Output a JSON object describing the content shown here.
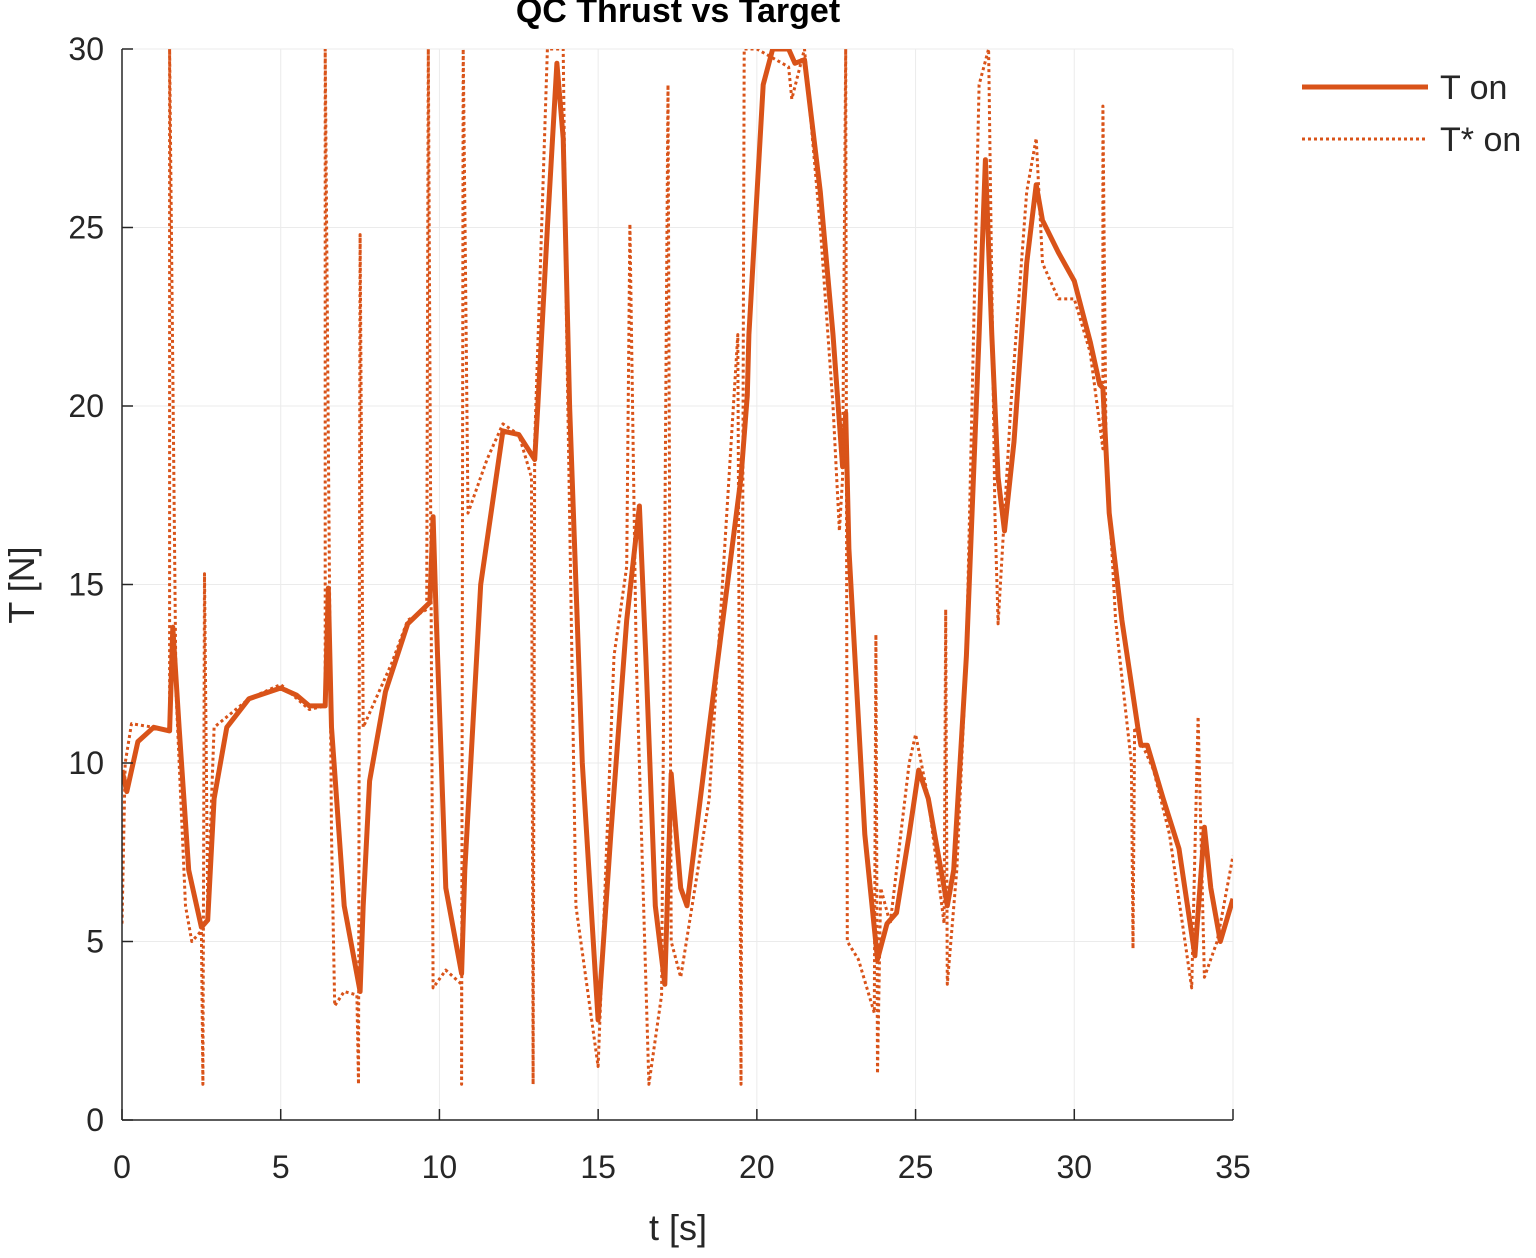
{
  "chart_data": {
    "type": "line",
    "title": "QC Thrust vs Target",
    "x_label": "t [s]",
    "y_label": "T [N]",
    "xlim": [
      0,
      35
    ],
    "ylim": [
      0,
      30
    ],
    "xticks": [
      0,
      5,
      10,
      15,
      20,
      25,
      30,
      35
    ],
    "yticks": [
      0,
      5,
      10,
      15,
      20,
      25,
      30
    ],
    "grid": true,
    "series": [
      {
        "name": "T on",
        "color": "#D95319",
        "style": "solid",
        "x": [
          0,
          0.15,
          0.5,
          1,
          1.5,
          1.6,
          1.8,
          2.1,
          2.5,
          2.7,
          2.9,
          3.3,
          4,
          5,
          5.5,
          5.9,
          6.4,
          6.5,
          6.6,
          7,
          7.5,
          7.6,
          7.8,
          8.3,
          9,
          9.7,
          9.8,
          9.9,
          10.2,
          10.7,
          10.8,
          11.3,
          12,
          12.5,
          13,
          13.1,
          13.4,
          13.7,
          13.9,
          14.1,
          14.5,
          15,
          15.4,
          15.9,
          16.3,
          16.5,
          16.8,
          17.1,
          17.3,
          17.6,
          17.8,
          18.5,
          19.5,
          19.7,
          19.75,
          20.2,
          20.5,
          21,
          21.2,
          21.5,
          22,
          22.4,
          22.7,
          22.8,
          22.9,
          23.4,
          23.8,
          24.1,
          24.4,
          24.8,
          25.1,
          25.4,
          25.8,
          26,
          26.2,
          26.6,
          27,
          27.2,
          27.4,
          27.6,
          27.8,
          28.1,
          28.5,
          28.8,
          29,
          29.5,
          30,
          30.5,
          30.8,
          30.9,
          31.1,
          31.5,
          32,
          32.1,
          32.3,
          32.8,
          33.3,
          33.8,
          34.1,
          34.3,
          34.6,
          35
        ],
        "values": [
          9.8,
          9.2,
          10.6,
          11,
          10.9,
          13.8,
          11,
          7,
          5.4,
          5.6,
          9,
          11,
          11.8,
          12.1,
          11.9,
          11.6,
          11.6,
          14.9,
          11,
          6,
          3.6,
          6,
          9.5,
          12,
          13.9,
          14.5,
          16.9,
          14,
          6.5,
          4.1,
          7,
          15,
          19.3,
          19.2,
          18.5,
          20,
          25,
          29.6,
          27.5,
          20,
          10,
          2.8,
          8,
          14,
          17.2,
          13,
          6,
          3.8,
          9.7,
          6.5,
          6,
          11,
          18,
          20.3,
          22,
          29,
          30,
          30,
          29.6,
          29.7,
          26,
          22,
          18.3,
          19.8,
          16,
          8,
          4.5,
          5.5,
          5.8,
          8,
          9.8,
          9,
          7,
          6,
          7,
          13,
          22,
          26.9,
          22,
          18,
          16.5,
          19,
          24,
          26.2,
          25.2,
          24.3,
          23.5,
          21.8,
          20.6,
          20.5,
          17,
          14,
          11,
          10.5,
          10.5,
          9,
          7.6,
          4.6,
          8.2,
          6.5,
          5,
          6.2
        ]
      },
      {
        "name": "T* on",
        "color": "#D95319",
        "style": "dotted",
        "x": [
          0,
          0.1,
          0.3,
          1,
          1.5,
          1.5,
          1.7,
          2,
          2.2,
          2.5,
          2.55,
          2.6,
          2.7,
          2.9,
          4,
          5,
          5.9,
          6.4,
          6.4,
          6.6,
          6.7,
          7,
          7.4,
          7.45,
          7.5,
          7.6,
          8.5,
          9,
          9.6,
          9.65,
          9.8,
          10.2,
          10.7,
          10.7,
          10.75,
          10.9,
          11.5,
          12,
          12.5,
          12.9,
          12.95,
          13,
          13.4,
          13.9,
          14,
          14.3,
          15,
          15.5,
          15.9,
          16,
          16.2,
          16.6,
          17,
          17.2,
          17.3,
          17.6,
          18.5,
          19.4,
          19.5,
          19.6,
          20,
          21,
          21.1,
          21.5,
          22,
          22.4,
          22.6,
          22.7,
          22.8,
          22.85,
          23.2,
          23.7,
          23.75,
          23.8,
          23.9,
          24.2,
          24.8,
          25,
          25.4,
          25.9,
          25.95,
          26,
          26.3,
          26.6,
          27,
          27.3,
          27.5,
          27.6,
          28,
          28.5,
          28.8,
          29,
          29.5,
          30,
          30.5,
          30.9,
          30.9,
          31,
          31.3,
          31.8,
          31.85,
          31.9,
          32.5,
          33,
          33.7,
          33.9,
          34.1,
          34.5,
          35
        ],
        "values": [
          5.5,
          10,
          11.1,
          11,
          10.9,
          30,
          12,
          6,
          5,
          5.3,
          1,
          15.3,
          6,
          11,
          11.8,
          12.2,
          11.5,
          11.6,
          30,
          8,
          3.2,
          3.6,
          3.5,
          1,
          24.8,
          11,
          12.8,
          14,
          14.3,
          30,
          3.7,
          4.2,
          3.8,
          1,
          30,
          17,
          18.5,
          19.5,
          19.2,
          18,
          1,
          19,
          30,
          30,
          22.5,
          6,
          1.5,
          13,
          15.5,
          25.1,
          13,
          1,
          3.5,
          29,
          5,
          4,
          9,
          22,
          1,
          30,
          30,
          29.5,
          28.6,
          30,
          25,
          20,
          16.5,
          18,
          30,
          5,
          4.5,
          3,
          13.6,
          1.3,
          6.5,
          5.5,
          10,
          10.8,
          9,
          5.5,
          14.3,
          3.8,
          7,
          13,
          29,
          30,
          17,
          13.9,
          20,
          26,
          27.5,
          24,
          23,
          23,
          21.5,
          18.8,
          28.4,
          19,
          14,
          10,
          4.8,
          11,
          9.8,
          8,
          3.7,
          11.3,
          4,
          5,
          7.4
        ]
      }
    ]
  }
}
